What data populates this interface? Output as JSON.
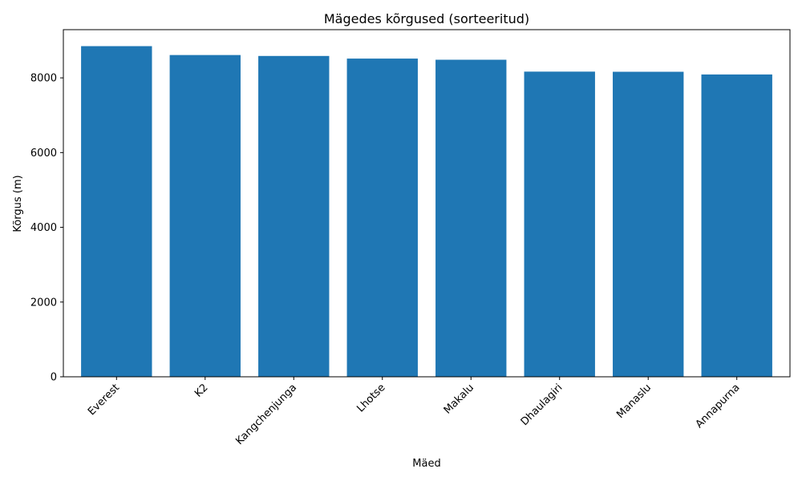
{
  "chart_data": {
    "type": "bar",
    "title": "Mägedes kõrgused (sorteeritud)",
    "xlabel": "Mäed",
    "ylabel": "Kõrgus (m)",
    "categories": [
      "Everest",
      "K2",
      "Kangchenjunga",
      "Lhotse",
      "Makalu",
      "Dhaulagiri",
      "Manaslu",
      "Annapurna"
    ],
    "values": [
      8849,
      8611,
      8586,
      8516,
      8485,
      8167,
      8163,
      8091
    ],
    "ylim": [
      0,
      9290
    ],
    "yticks": [
      0,
      2000,
      4000,
      6000,
      8000
    ],
    "ytick_labels": [
      "0",
      "2000",
      "4000",
      "6000",
      "8000"
    ],
    "bar_color": "#1f77b4",
    "grid": false,
    "legend": "none"
  }
}
